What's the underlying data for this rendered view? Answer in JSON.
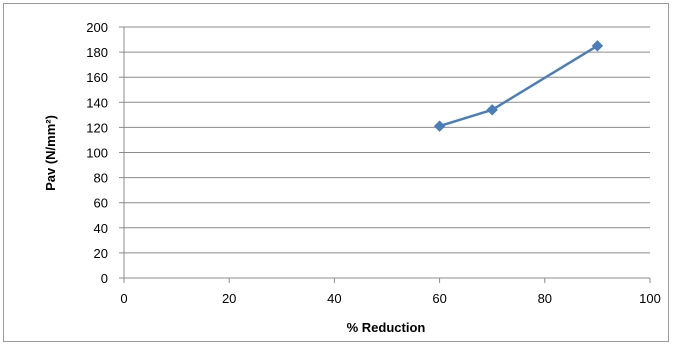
{
  "chart_data": {
    "type": "scatter",
    "title": "",
    "xlabel": "% Reduction",
    "ylabel": "Pav (N/mm²)",
    "xlim": [
      0,
      100
    ],
    "ylim": [
      0,
      200
    ],
    "x_ticks": [
      0,
      20,
      40,
      60,
      80,
      100
    ],
    "y_ticks": [
      0,
      20,
      40,
      60,
      80,
      100,
      120,
      140,
      160,
      180,
      200
    ],
    "grid": "horizontal",
    "legend": "none",
    "series": [
      {
        "x": [
          60,
          70,
          90
        ],
        "y": [
          121,
          134,
          185
        ],
        "color": "#4a7ebb",
        "marker": "diamond",
        "line": true
      }
    ]
  }
}
